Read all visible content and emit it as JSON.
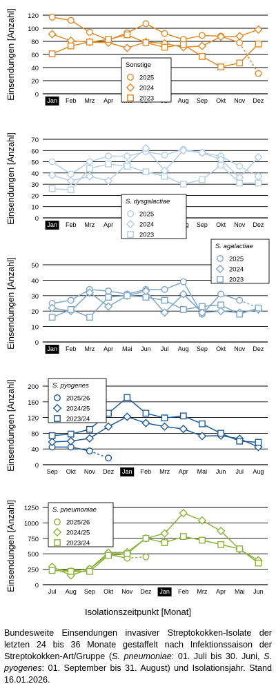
{
  "xaxis_label": "Isolationszeitpunkt [Monat]",
  "caption": {
    "part1": "Bundesweite Einsendungen invasiver Streptokokken-Isolate der letzten 24 bis 36 Monate gestaffelt nach Infektionssaison der Streptokokken-Art/Gruppe (",
    "ital1": "S. pneumoniae",
    "part2": ": 01. Juli bis 30. Juni, ",
    "ital2": "S. pyogenes",
    "part3": ": 01. September bis 31. August) und Isolationsjahr. Stand 16.01.2026."
  },
  "chart_data": [
    {
      "type": "line",
      "legend_title": "Sonstige",
      "legend_italic": false,
      "legend_position": "middle-right",
      "ylabel": "Einsendungen [Anzahl]",
      "ylim": [
        0,
        120
      ],
      "yticks": [
        0,
        20,
        40,
        60,
        80,
        100,
        120
      ],
      "grid": true,
      "categories": [
        "Jan",
        "Feb",
        "Mrz",
        "Apr",
        "Mai",
        "Jun",
        "Jul",
        "Aug",
        "Sep",
        "Okt",
        "Nov",
        "Dez"
      ],
      "highlight_category": "Jan",
      "color": "#e28a26",
      "series": [
        {
          "name": "2025",
          "marker": "circle",
          "values": [
            117,
            112,
            94,
            82,
            93,
            107,
            92,
            83,
            89,
            88,
            78,
            31
          ],
          "dashed_from": 10
        },
        {
          "name": "2024",
          "marker": "diamond",
          "values": [
            91,
            81,
            79,
            78,
            70,
            79,
            77,
            71,
            73,
            87,
            88,
            98
          ]
        },
        {
          "name": "2023",
          "marker": "square",
          "values": [
            61,
            73,
            79,
            83,
            90,
            78,
            71,
            75,
            57,
            41,
            47,
            76
          ]
        }
      ]
    },
    {
      "type": "line",
      "legend_title": "S. dysgalactiae",
      "legend_italic": true,
      "legend_position": "middle-right",
      "ylabel": "Einsendungen [Anzahl]",
      "ylim": [
        0,
        70
      ],
      "yticks": [
        0,
        10,
        20,
        30,
        40,
        50,
        60,
        70
      ],
      "grid": true,
      "categories": [
        "Jan",
        "Feb",
        "Mrz",
        "Apr",
        "Mai",
        "Jun",
        "Jul",
        "Aug",
        "Sep",
        "Okt",
        "Nov",
        "Dez"
      ],
      "highlight_category": "Jan",
      "color": "#b4cfe6",
      "series": [
        {
          "name": "2025",
          "marker": "circle",
          "values": [
            50,
            39,
            50,
            55,
            55,
            59,
            56,
            61,
            58,
            55,
            46,
            37
          ],
          "dashed_from": 10
        },
        {
          "name": "2024",
          "marker": "diamond",
          "values": [
            38,
            33,
            37,
            33,
            48,
            62,
            42,
            60,
            58,
            52,
            36,
            54
          ]
        },
        {
          "name": "2023",
          "marker": "square",
          "values": [
            26,
            25,
            44,
            48,
            46,
            41,
            37,
            30,
            34,
            47,
            31,
            31
          ]
        }
      ]
    },
    {
      "type": "line",
      "legend_title": "S. agalactiae",
      "legend_italic": true,
      "legend_position": "top-right",
      "ylabel": "Einsendungen [Anzahl]",
      "ylim": [
        0,
        50
      ],
      "yticks": [
        0,
        10,
        20,
        30,
        40,
        50
      ],
      "grid": true,
      "categories": [
        "Jan",
        "Feb",
        "Mrz",
        "Apr",
        "Mai",
        "Jun",
        "Jul",
        "Aug",
        "Sep",
        "Okt",
        "Nov",
        "Dez"
      ],
      "highlight_category": "Jan",
      "color": "#7ea6c9",
      "series": [
        {
          "name": "2025",
          "marker": "circle",
          "values": [
            25,
            27,
            34,
            33,
            31,
            34,
            34,
            39,
            18,
            31,
            27,
            22
          ],
          "dashed_from": 10
        },
        {
          "name": "2024",
          "marker": "diamond",
          "values": [
            22,
            20,
            32,
            23,
            30,
            33,
            19,
            31,
            19,
            20,
            19,
            21
          ]
        },
        {
          "name": "2023",
          "marker": "square",
          "values": [
            16,
            21,
            16,
            29,
            30,
            29,
            27,
            21,
            23,
            24,
            18,
            22
          ]
        }
      ]
    },
    {
      "type": "line",
      "legend_title": "S. pyogenes",
      "legend_italic": true,
      "legend_position": "top-left",
      "ylabel": "Einsendungen [Anzahl]",
      "ylim": [
        0,
        200
      ],
      "yticks": [
        0,
        40,
        80,
        120,
        160,
        200
      ],
      "grid": true,
      "categories": [
        "Sep",
        "Okt",
        "Nov",
        "Dez",
        "Jan",
        "Feb",
        "Mrz",
        "Apr",
        "Mai",
        "Jun",
        "Jul",
        "Aug"
      ],
      "highlight_category": "Jan",
      "color": "#1f5a96",
      "series": [
        {
          "name": "2025/26",
          "marker": "circle",
          "values": [
            45,
            45,
            35,
            17,
            null,
            null,
            null,
            null,
            null,
            null,
            null,
            null
          ],
          "dashed_from": 2
        },
        {
          "name": "2024/25",
          "marker": "diamond",
          "values": [
            58,
            60,
            67,
            97,
            122,
            106,
            97,
            91,
            73,
            74,
            66,
            45
          ]
        },
        {
          "name": "2023/24",
          "marker": "square",
          "values": [
            74,
            78,
            90,
            131,
            171,
            131,
            119,
            124,
            104,
            80,
            60,
            57
          ]
        }
      ]
    },
    {
      "type": "line",
      "legend_title": "S. pneumoniae",
      "legend_italic": true,
      "legend_position": "top-left",
      "ylabel": "Einsendungen [Anzahl]",
      "ylim": [
        0,
        1250
      ],
      "yticks": [
        0,
        250,
        500,
        750,
        1000,
        1250
      ],
      "grid": true,
      "categories": [
        "Jul",
        "Aug",
        "Sep",
        "Okt",
        "Nov",
        "Dez",
        "Jan",
        "Feb",
        "Mrz",
        "Apr",
        "Mai",
        "Jun"
      ],
      "highlight_category": "Jan",
      "color": "#8db33a",
      "series": [
        {
          "name": "2025/26",
          "marker": "circle",
          "values": [
            265,
            220,
            255,
            490,
            430,
            450,
            null,
            null,
            null,
            null,
            null,
            null
          ],
          "dashed_from": 4
        },
        {
          "name": "2024/25",
          "marker": "diamond",
          "values": [
            290,
            150,
            255,
            520,
            525,
            750,
            830,
            1160,
            1040,
            870,
            570,
            395
          ]
        },
        {
          "name": "2023/24",
          "marker": "square",
          "values": [
            230,
            215,
            215,
            475,
            500,
            750,
            680,
            780,
            720,
            650,
            580,
            350
          ]
        }
      ]
    }
  ]
}
